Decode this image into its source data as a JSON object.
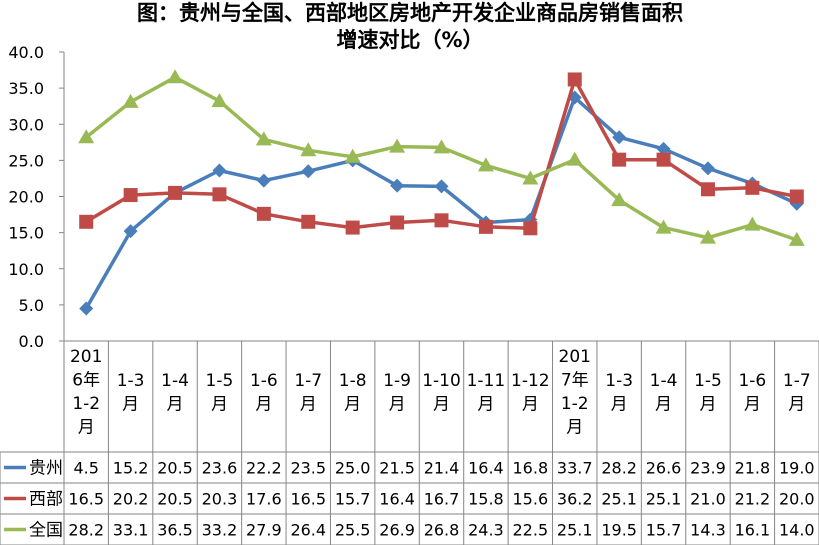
{
  "chart_data": {
    "type": "line",
    "title_line1": "图：贵州与全国、西部地区房地产开发企业商品房销售面积",
    "title_line2": "增速对比（%）",
    "ylim": [
      0,
      40
    ],
    "yticks": [
      "0.0",
      "5.0",
      "10.0",
      "15.0",
      "20.0",
      "25.0",
      "30.0",
      "35.0",
      "40.0"
    ],
    "categories": [
      [
        "201",
        "6年",
        "1-2",
        "月"
      ],
      [
        "1-3",
        "月"
      ],
      [
        "1-4",
        "月"
      ],
      [
        "1-5",
        "月"
      ],
      [
        "1-6",
        "月"
      ],
      [
        "1-7",
        "月"
      ],
      [
        "1-8",
        "月"
      ],
      [
        "1-9",
        "月"
      ],
      [
        "1-10",
        "月"
      ],
      [
        "1-11",
        "月"
      ],
      [
        "1-12",
        "月"
      ],
      [
        "201",
        "7年",
        "1-2",
        "月"
      ],
      [
        "1-3",
        "月"
      ],
      [
        "1-4",
        "月"
      ],
      [
        "1-5",
        "月"
      ],
      [
        "1-6",
        "月"
      ],
      [
        "1-7",
        "月"
      ]
    ],
    "series": [
      {
        "name": "贵州",
        "color": "#4a7ebb",
        "marker": "diamond",
        "values": [
          4.5,
          15.2,
          20.5,
          23.6,
          22.2,
          23.5,
          25.0,
          21.5,
          21.4,
          16.4,
          16.8,
          33.7,
          28.2,
          26.6,
          23.9,
          21.8,
          19.0
        ]
      },
      {
        "name": "西部",
        "color": "#be4b48",
        "marker": "square",
        "values": [
          16.5,
          20.2,
          20.5,
          20.3,
          17.6,
          16.5,
          15.7,
          16.4,
          16.7,
          15.8,
          15.6,
          36.2,
          25.1,
          25.1,
          21.0,
          21.2,
          20.0
        ]
      },
      {
        "name": "全国",
        "color": "#98b954",
        "marker": "triangle",
        "values": [
          28.2,
          33.1,
          36.5,
          33.2,
          27.9,
          26.4,
          25.5,
          26.9,
          26.8,
          24.3,
          22.5,
          25.1,
          19.5,
          15.7,
          14.3,
          16.1,
          14.0
        ]
      }
    ],
    "table": [
      [
        "4.5",
        "15.2",
        "20.5",
        "23.6",
        "22.2",
        "23.5",
        "25.0",
        "21.5",
        "21.4",
        "16.4",
        "16.8",
        "33.7",
        "28.2",
        "26.6",
        "23.9",
        "21.8",
        "19.0"
      ],
      [
        "16.5",
        "20.2",
        "20.5",
        "20.3",
        "17.6",
        "16.5",
        "15.7",
        "16.4",
        "16.7",
        "15.8",
        "15.6",
        "36.2",
        "25.1",
        "25.1",
        "21.0",
        "21.2",
        "20.0"
      ],
      [
        "28.2",
        "33.1",
        "36.5",
        "33.2",
        "27.9",
        "26.4",
        "25.5",
        "26.9",
        "26.8",
        "24.3",
        "22.5",
        "25.1",
        "19.5",
        "15.7",
        "14.3",
        "16.1",
        "14.0"
      ]
    ],
    "grid": false,
    "legend": "data-table-left"
  }
}
